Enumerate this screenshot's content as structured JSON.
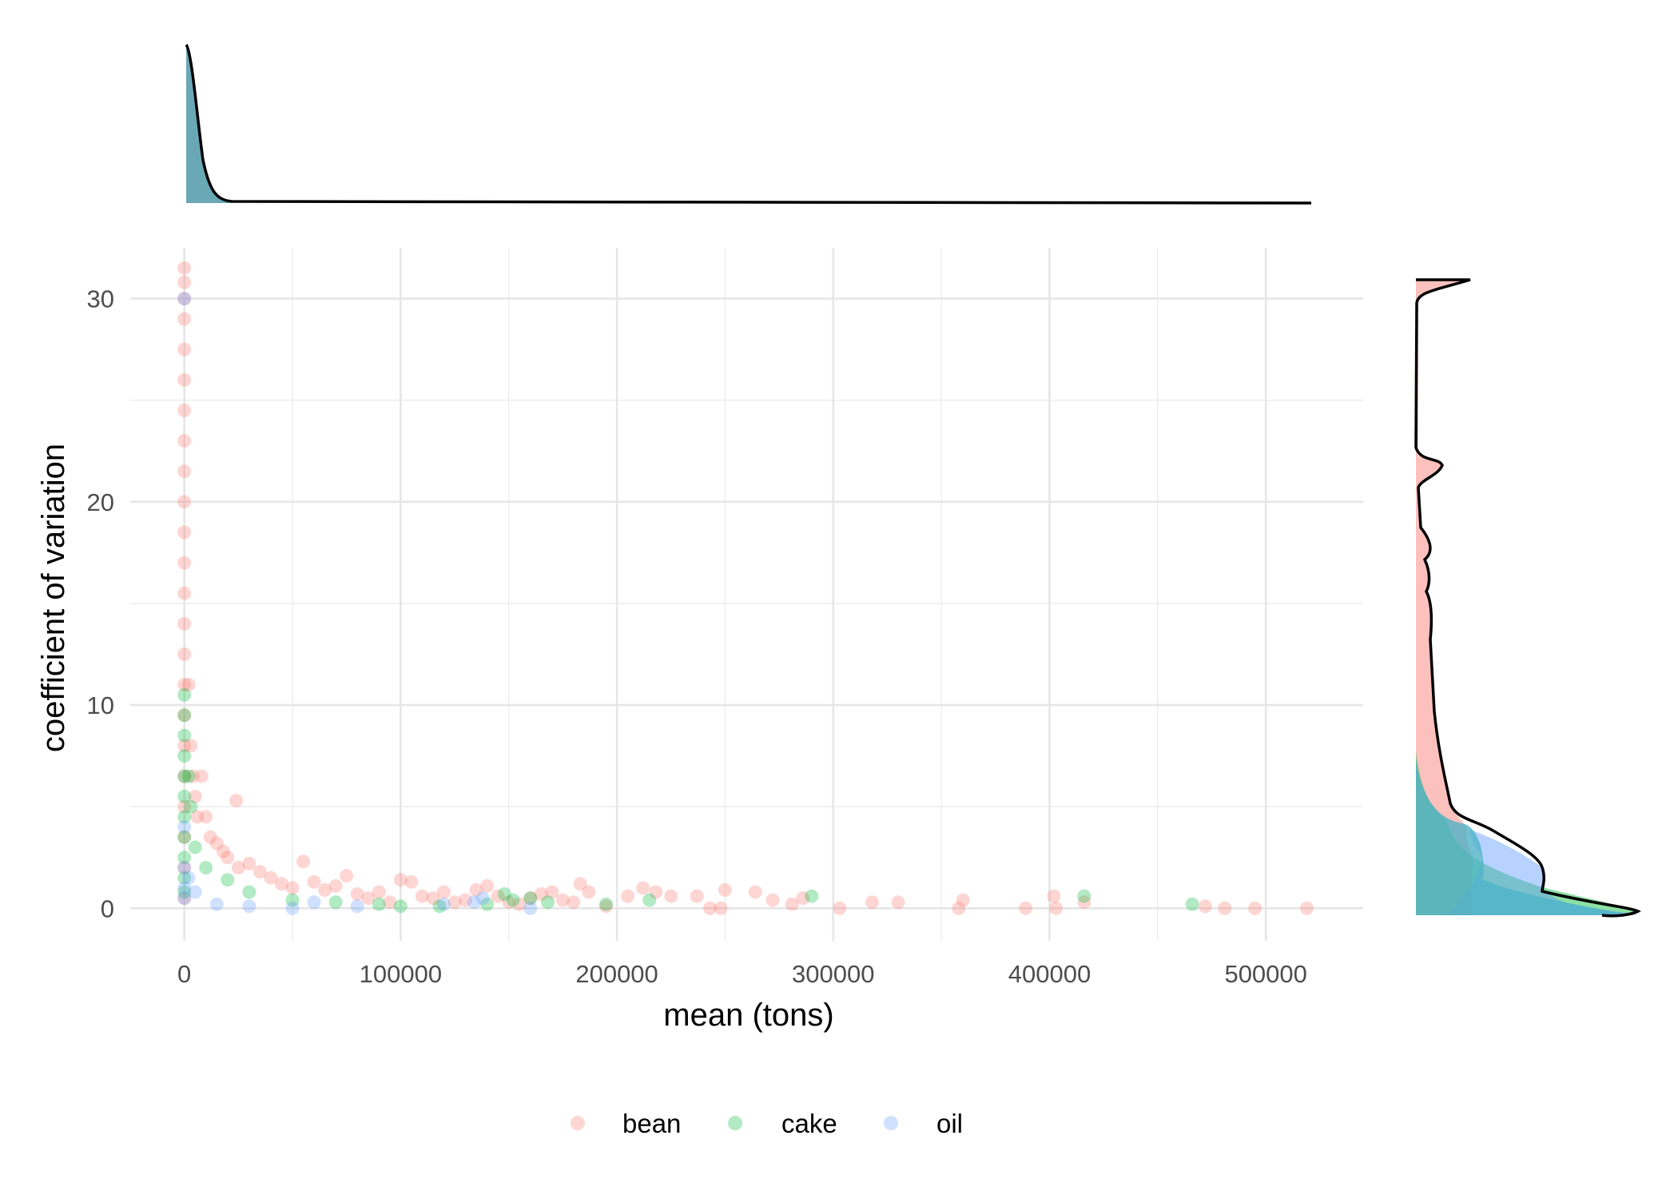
{
  "chart_data": {
    "type": "scatter",
    "title": "",
    "xlabel": "mean (tons)",
    "ylabel": "coefficient of variation",
    "xlim": [
      -25000,
      545000
    ],
    "ylim": [
      -1.6,
      32.5
    ],
    "x_ticks": [
      0,
      100000,
      200000,
      300000,
      400000,
      500000
    ],
    "x_tick_labels": [
      "0",
      "100000",
      "200000",
      "300000",
      "400000",
      "500000"
    ],
    "y_ticks": [
      0,
      10,
      20,
      30
    ],
    "y_tick_labels": [
      "0",
      "10",
      "20",
      "30"
    ],
    "grid": true,
    "legend_position": "bottom",
    "marginal_plots": "density (top: x, right: y)",
    "series": [
      {
        "name": "bean",
        "color": "#F8766D",
        "points": [
          [
            0,
            31.5
          ],
          [
            0,
            30.8
          ],
          [
            0,
            30
          ],
          [
            0,
            29
          ],
          [
            0,
            27.5
          ],
          [
            0,
            26
          ],
          [
            0,
            24.5
          ],
          [
            0,
            23
          ],
          [
            0,
            21.5
          ],
          [
            0,
            20
          ],
          [
            0,
            18.5
          ],
          [
            0,
            17
          ],
          [
            0,
            15.5
          ],
          [
            0,
            14
          ],
          [
            0,
            12.5
          ],
          [
            0,
            11
          ],
          [
            0,
            9.5
          ],
          [
            0,
            8
          ],
          [
            0,
            6.5
          ],
          [
            0,
            5
          ],
          [
            0,
            3.5
          ],
          [
            0,
            2
          ],
          [
            0,
            0.5
          ],
          [
            2000,
            11
          ],
          [
            3000,
            8
          ],
          [
            4000,
            6.5
          ],
          [
            5000,
            5.5
          ],
          [
            6000,
            4.5
          ],
          [
            8000,
            6.5
          ],
          [
            10000,
            4.5
          ],
          [
            12000,
            3.5
          ],
          [
            15000,
            3.2
          ],
          [
            18000,
            2.8
          ],
          [
            24000,
            5.3
          ],
          [
            20000,
            2.5
          ],
          [
            25000,
            2
          ],
          [
            30000,
            2.2
          ],
          [
            35000,
            1.8
          ],
          [
            40000,
            1.5
          ],
          [
            45000,
            1.2
          ],
          [
            50000,
            1
          ],
          [
            55000,
            2.3
          ],
          [
            60000,
            1.3
          ],
          [
            65000,
            0.9
          ],
          [
            70000,
            1.1
          ],
          [
            75000,
            1.6
          ],
          [
            80000,
            0.7
          ],
          [
            85000,
            0.5
          ],
          [
            90000,
            0.8
          ],
          [
            95000,
            0.3
          ],
          [
            100000,
            1.4
          ],
          [
            105000,
            1.3
          ],
          [
            110000,
            0.6
          ],
          [
            115000,
            0.5
          ],
          [
            120000,
            0.8
          ],
          [
            125000,
            0.3
          ],
          [
            130000,
            0.4
          ],
          [
            135000,
            0.9
          ],
          [
            140000,
            1.1
          ],
          [
            145000,
            0.6
          ],
          [
            150000,
            0.3
          ],
          [
            155000,
            0.2
          ],
          [
            160000,
            0.5
          ],
          [
            165000,
            0.7
          ],
          [
            170000,
            0.8
          ],
          [
            175000,
            0.4
          ],
          [
            180000,
            0.3
          ],
          [
            183000,
            1.2
          ],
          [
            187000,
            0.8
          ],
          [
            195000,
            0.1
          ],
          [
            205000,
            0.6
          ],
          [
            212000,
            1
          ],
          [
            218000,
            0.8
          ],
          [
            225000,
            0.6
          ],
          [
            237000,
            0.6
          ],
          [
            243000,
            0
          ],
          [
            248000,
            0
          ],
          [
            250000,
            0.9
          ],
          [
            264000,
            0.8
          ],
          [
            272000,
            0.4
          ],
          [
            281000,
            0.2
          ],
          [
            286000,
            0.5
          ],
          [
            303000,
            0
          ],
          [
            318000,
            0.3
          ],
          [
            330000,
            0.3
          ],
          [
            358000,
            0
          ],
          [
            360000,
            0.4
          ],
          [
            389000,
            0
          ],
          [
            402000,
            0.6
          ],
          [
            403000,
            0
          ],
          [
            416000,
            0.3
          ],
          [
            472000,
            0.1
          ],
          [
            481000,
            0
          ],
          [
            495000,
            0
          ],
          [
            519000,
            0
          ]
        ]
      },
      {
        "name": "cake",
        "color": "#00BA38",
        "points": [
          [
            0,
            10.5
          ],
          [
            0,
            9.5
          ],
          [
            0,
            8.5
          ],
          [
            0,
            7.5
          ],
          [
            0,
            6.5
          ],
          [
            0,
            5.5
          ],
          [
            0,
            4.5
          ],
          [
            0,
            3.5
          ],
          [
            0,
            2.5
          ],
          [
            0,
            1.5
          ],
          [
            0,
            0.8
          ],
          [
            2000,
            6.5
          ],
          [
            3000,
            5
          ],
          [
            5000,
            3
          ],
          [
            10000,
            2
          ],
          [
            20000,
            1.4
          ],
          [
            30000,
            0.8
          ],
          [
            50000,
            0.4
          ],
          [
            70000,
            0.3
          ],
          [
            90000,
            0.2
          ],
          [
            100000,
            0.1
          ],
          [
            118000,
            0.1
          ],
          [
            140000,
            0.2
          ],
          [
            148000,
            0.7
          ],
          [
            152000,
            0.4
          ],
          [
            160000,
            0.5
          ],
          [
            168000,
            0.3
          ],
          [
            195000,
            0.2
          ],
          [
            215000,
            0.4
          ],
          [
            290000,
            0.6
          ],
          [
            416000,
            0.6
          ],
          [
            466000,
            0.2
          ]
        ]
      },
      {
        "name": "oil",
        "color": "#619CFF",
        "points": [
          [
            0,
            30
          ],
          [
            0,
            4
          ],
          [
            0,
            2
          ],
          [
            0,
            1
          ],
          [
            0,
            0.5
          ],
          [
            2000,
            1.5
          ],
          [
            5000,
            0.8
          ],
          [
            15000,
            0.2
          ],
          [
            30000,
            0.1
          ],
          [
            50000,
            0
          ],
          [
            60000,
            0.3
          ],
          [
            80000,
            0.1
          ],
          [
            120000,
            0.2
          ],
          [
            134000,
            0.3
          ],
          [
            138000,
            0.5
          ],
          [
            160000,
            0
          ]
        ]
      }
    ]
  }
}
